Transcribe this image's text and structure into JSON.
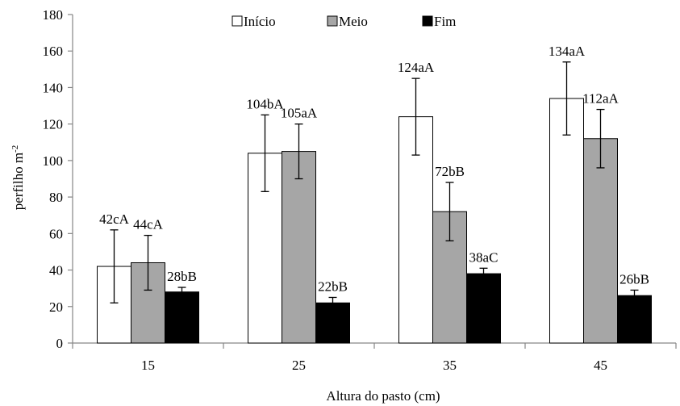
{
  "chart_data": {
    "type": "bar",
    "title": "",
    "xlabel": "Altura do pasto (cm)",
    "ylabel": "perfilho m-2",
    "ylabel_main": "perfilho m",
    "ylabel_superscript": "-2",
    "categories": [
      "15",
      "25",
      "35",
      "45"
    ],
    "ylim": [
      0,
      180
    ],
    "yticks": [
      "0",
      "20",
      "40",
      "60",
      "80",
      "100",
      "120",
      "140",
      "160",
      "180"
    ],
    "grid": false,
    "legend_position": "top-center",
    "series": [
      {
        "name": "Início",
        "color": "#ffffff",
        "values": [
          42,
          104,
          124,
          134
        ],
        "errors": [
          20,
          21,
          21,
          20
        ],
        "labels": [
          "42cA",
          "104bA",
          "124aA",
          "134aA"
        ]
      },
      {
        "name": "Meio",
        "color": "#a6a6a6",
        "values": [
          44,
          105,
          72,
          112
        ],
        "errors": [
          15,
          15,
          16,
          16
        ],
        "labels": [
          "44cA",
          "105aA",
          "72bB",
          "112aA"
        ]
      },
      {
        "name": "Fim",
        "color": "#000000",
        "values": [
          28,
          22,
          38,
          26
        ],
        "errors": [
          2.5,
          3,
          3,
          3
        ],
        "labels": [
          "28bB",
          "22bB",
          "38aC",
          "26bB"
        ]
      }
    ]
  }
}
